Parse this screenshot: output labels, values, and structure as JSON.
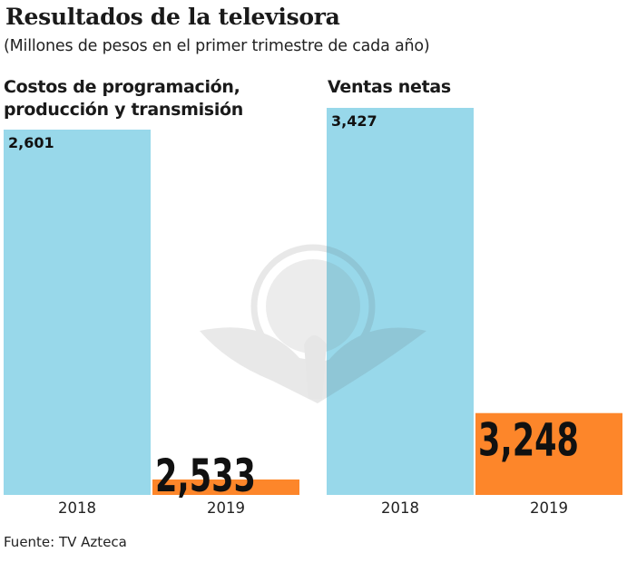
{
  "title": "Resultados de la televisora",
  "subtitle": "(Millones de pesos en el primer trimestre de cada año)",
  "source": "Fuente: TV Azteca",
  "colors": {
    "y2018": "#98d8ea",
    "y2019": "#fd862a",
    "text": "#111111"
  },
  "chart_data": [
    {
      "type": "bar",
      "title_lines": [
        "Costos de programación,",
        "producción y transmisión"
      ],
      "categories": [
        "2018",
        "2019"
      ],
      "values": [
        2601,
        2533
      ],
      "value_labels": [
        "2,601",
        "2,533"
      ],
      "ylim": [
        2530,
        2601
      ],
      "xlabel": "",
      "ylabel": "",
      "grid": false
    },
    {
      "type": "bar",
      "title_lines": [
        "Ventas netas"
      ],
      "categories": [
        "2018",
        "2019"
      ],
      "values": [
        3427,
        3248
      ],
      "value_labels": [
        "3,427",
        "3,248"
      ],
      "ylim": [
        3200,
        3427
      ],
      "xlabel": "",
      "ylabel": "",
      "grid": false
    }
  ]
}
